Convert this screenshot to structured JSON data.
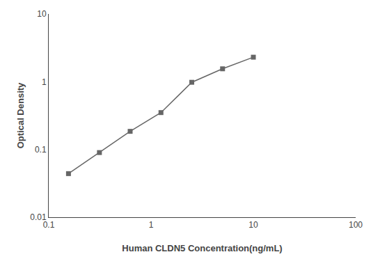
{
  "chart_data": {
    "type": "line",
    "x": [
      0.156,
      0.313,
      0.625,
      1.25,
      2.5,
      5.0,
      10.0
    ],
    "values": [
      0.044,
      0.09,
      0.185,
      0.35,
      0.98,
      1.55,
      2.3
    ],
    "xlabel": "Human CLDN5 Concentration(ng/mL)",
    "ylabel": "Optical Density",
    "xlim": [
      0.1,
      100
    ],
    "ylim": [
      0.01,
      10
    ],
    "xticks": [
      0.1,
      1,
      10,
      100
    ],
    "yticks": [
      0.01,
      0.1,
      1,
      10
    ],
    "log": true,
    "grid": false,
    "color": "#666666",
    "marker": "square"
  }
}
